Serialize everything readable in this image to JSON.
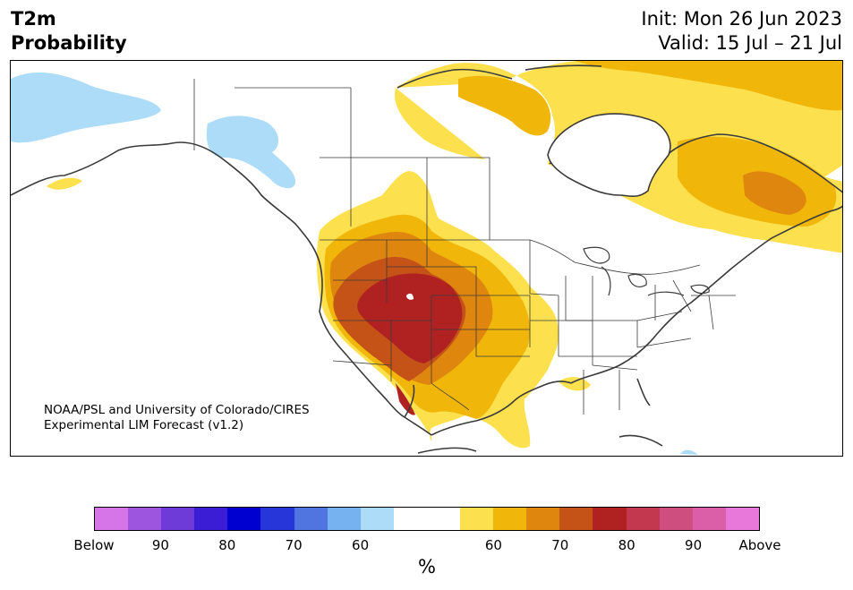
{
  "header": {
    "variable": "T2m",
    "product": "Probability",
    "init": "Init: Mon 26 Jun 2023",
    "valid": "Valid: 15 Jul – 21 Jul"
  },
  "credit": {
    "line1": "NOAA/PSL and University of Colorado/CIRES",
    "line2": "Experimental LIM Forecast (v1.2)"
  },
  "legend": {
    "colors": [
      "#d575e8",
      "#9d55e0",
      "#6e3ad8",
      "#3a1dd5",
      "#0000d0",
      "#2736d8",
      "#5175e0",
      "#77b2f0",
      "#acdcf8",
      "#ffffff",
      "#ffffff",
      "#fde04e",
      "#f0b70a",
      "#df860f",
      "#c55317",
      "#b02222",
      "#c3384e",
      "#cf4e80",
      "#db5fa8",
      "#e878da"
    ],
    "ticks": [
      "Below",
      "90",
      "80",
      "70",
      "60",
      "60",
      "70",
      "80",
      "90",
      "Above"
    ],
    "unit": "%"
  },
  "map_colors": {
    "cold": "#acdcf8",
    "warm60": "#fde04e",
    "warm70": "#f0b70a",
    "warm80": "#df860f",
    "warm90": "#c55317",
    "warm100": "#b02222"
  }
}
